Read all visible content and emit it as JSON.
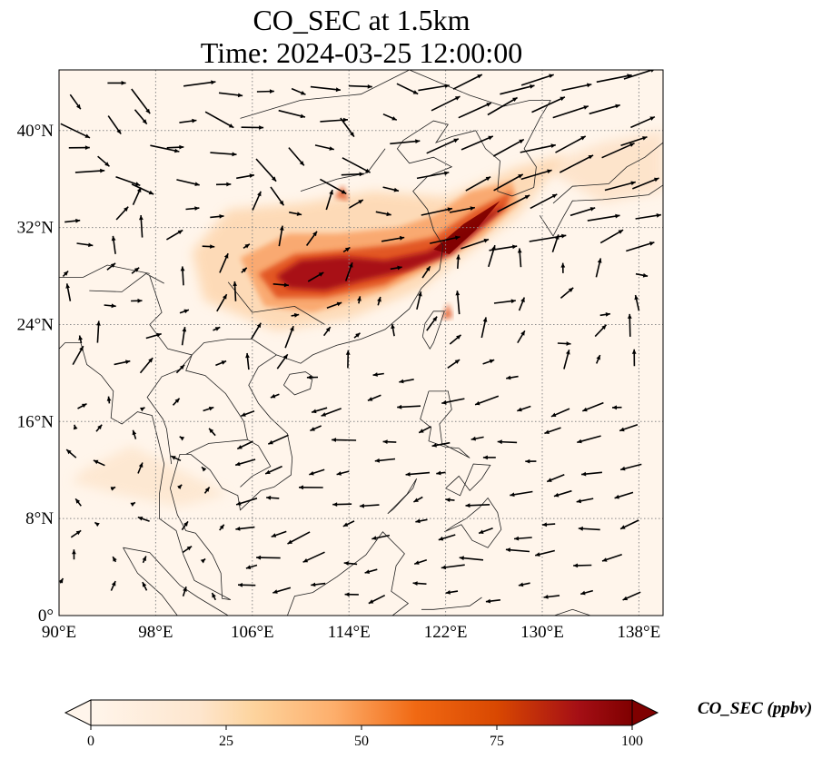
{
  "title": {
    "line1": "CO_SEC at 1.5km",
    "line2": "Time: 2024-03-25 12:00:00"
  },
  "map": {
    "lon_range": [
      90,
      140
    ],
    "lat_range": [
      0,
      45
    ],
    "lon_ticks": [
      "90°E",
      "98°E",
      "106°E",
      "114°E",
      "122°E",
      "130°E",
      "138°E"
    ],
    "lat_ticks": [
      "0°",
      "8°N",
      "16°N",
      "24°N",
      "32°N",
      "40°N"
    ],
    "gridlines": true,
    "field": "CO_SEC",
    "plume_axis": [
      [
        107.5,
        27.5
      ],
      [
        112,
        28
      ],
      [
        117,
        29.5
      ],
      [
        121,
        30.5
      ],
      [
        124,
        32.5
      ],
      [
        128,
        34
      ]
    ]
  },
  "colorbar": {
    "label": "CO_SEC (ppbv)",
    "ticks": [
      "0",
      "25",
      "50",
      "75",
      "100"
    ],
    "range": [
      0,
      100
    ],
    "extend": "both",
    "colors": [
      "#fff5eb",
      "#fdd49e",
      "#fdae6b",
      "#f16913",
      "#d94801",
      "#a63603",
      "#7f0000"
    ]
  }
}
